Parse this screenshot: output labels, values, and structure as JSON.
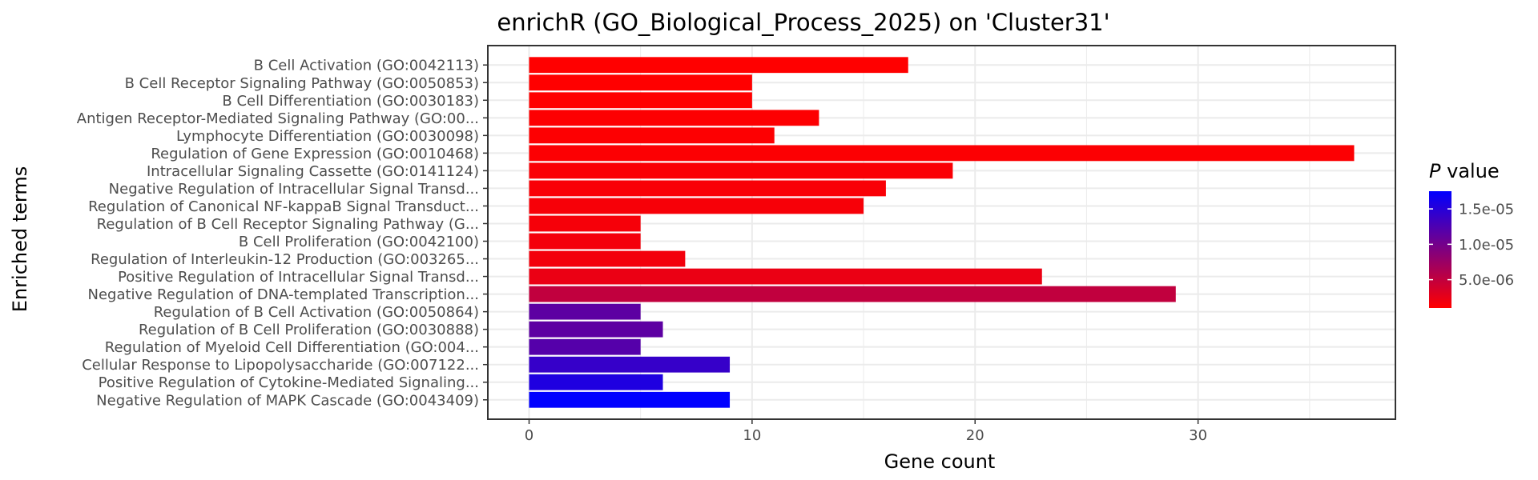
{
  "chart_data": {
    "type": "bar",
    "orientation": "horizontal",
    "title": "enrichR (GO_Biological_Process_2025) on 'Cluster31'",
    "xlabel": "Gene count",
    "ylabel": "Enriched terms",
    "xlim": [
      -1.85,
      38.85
    ],
    "x_ticks": [
      "0",
      "10",
      "20",
      "30"
    ],
    "grid": true,
    "legend": {
      "title_italic": "P",
      "title_rest": " value",
      "placement": "right",
      "ticks": [
        "1.5e-05",
        "1.0e-05",
        "5.0e-06"
      ],
      "tick_values": [
        1.5e-05,
        1e-05,
        5e-06
      ],
      "range": [
        1e-06,
        1.75e-05
      ],
      "color_low": "#ff0000",
      "color_high": "#0000ff"
    },
    "categories": [
      "B Cell Activation (GO:0042113)",
      "B Cell Receptor Signaling Pathway (GO:0050853)",
      "B Cell Differentiation (GO:0030183)",
      "Antigen Receptor-Mediated Signaling Pathway (GO:00...",
      "Lymphocyte Differentiation (GO:0030098)",
      "Regulation of Gene Expression (GO:0010468)",
      "Intracellular Signaling Cassette (GO:0141124)",
      "Negative Regulation of Intracellular Signal Transd...",
      "Regulation of Canonical NF-kappaB Signal Transduct...",
      "Regulation of B Cell Receptor Signaling Pathway (G...",
      "B Cell Proliferation (GO:0042100)",
      "Regulation of Interleukin-12 Production (GO:003265...",
      "Positive Regulation of Intracellular Signal Transd...",
      "Negative Regulation of DNA-templated Transcription...",
      "Regulation of B Cell Activation (GO:0050864)",
      "Regulation of B Cell Proliferation (GO:0030888)",
      "Regulation of Myeloid Cell Differentiation (GO:004...",
      "Cellular Response to Lipopolysaccharide (GO:007122...",
      "Positive Regulation of Cytokine-Mediated Signaling...",
      "Negative Regulation of MAPK Cascade (GO:0043409)"
    ],
    "values": [
      17,
      10,
      10,
      13,
      11,
      37,
      19,
      16,
      15,
      5,
      5,
      7,
      23,
      29,
      5,
      6,
      5,
      9,
      6,
      9
    ],
    "p_values": [
      1e-06,
      1e-06,
      1e-06,
      1.1e-06,
      1.1e-06,
      1.2e-06,
      1.3e-06,
      1.4e-06,
      1.5e-06,
      1.6e-06,
      1.7e-06,
      1.8e-06,
      2.3e-06,
      5e-06,
      1.15e-05,
      1.15e-05,
      1.2e-05,
      1.4e-05,
      1.55e-05,
      1.75e-05
    ]
  }
}
